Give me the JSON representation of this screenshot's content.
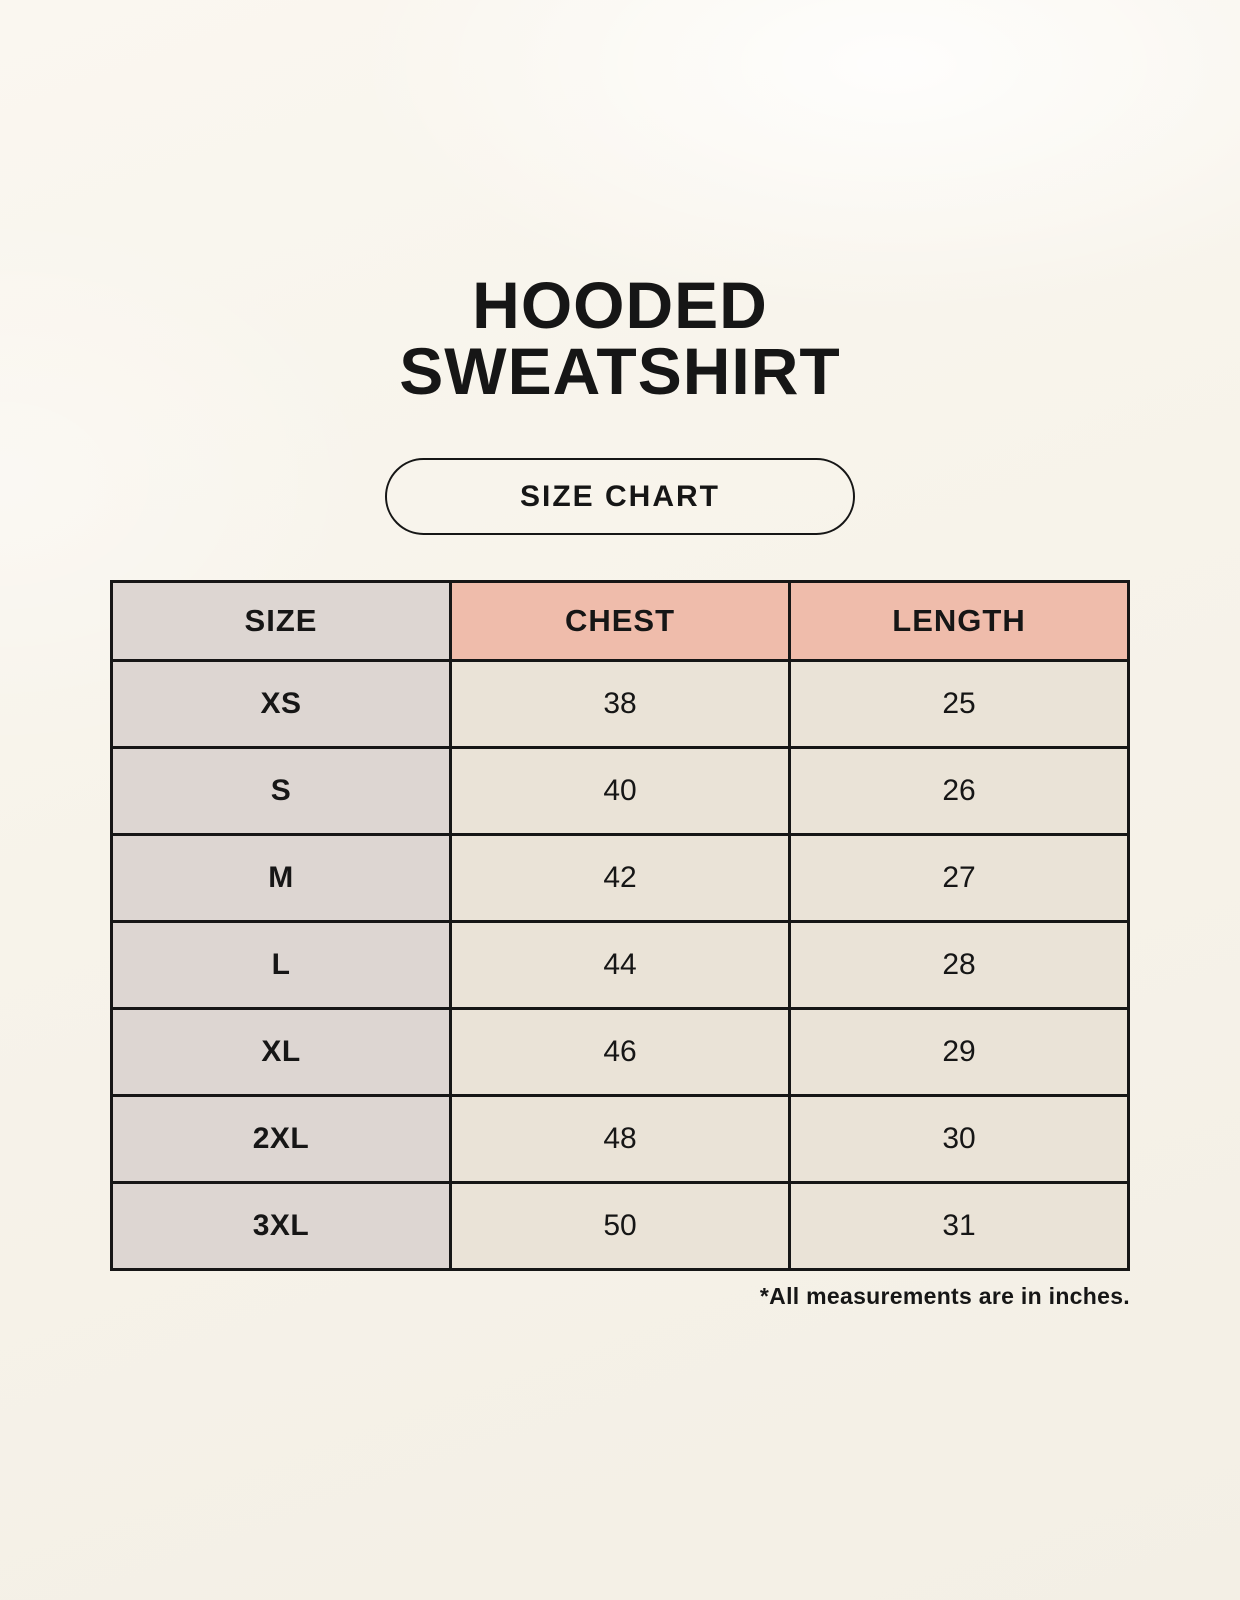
{
  "header": {
    "title_line1": "HOODED",
    "title_line2": "SWEATSHIRT",
    "badge_label": "SIZE CHART"
  },
  "chart_data": {
    "type": "table",
    "title": "HOODED SWEATSHIRT SIZE CHART",
    "columns": [
      "SIZE",
      "CHEST",
      "LENGTH"
    ],
    "rows": [
      [
        "XS",
        "38",
        "25"
      ],
      [
        "S",
        "40",
        "26"
      ],
      [
        "M",
        "42",
        "27"
      ],
      [
        "L",
        "44",
        "28"
      ],
      [
        "XL",
        "46",
        "29"
      ],
      [
        "2XL",
        "48",
        "30"
      ],
      [
        "3XL",
        "50",
        "31"
      ]
    ]
  },
  "footnote": "*All measurements are in inches.",
  "colors": {
    "page_background": "#f7f3ea",
    "accent_salmon": "#efbcab",
    "size_column_gray": "#ddd6d2",
    "cell_cream": "#eae3d7",
    "ink_black": "#161616"
  }
}
